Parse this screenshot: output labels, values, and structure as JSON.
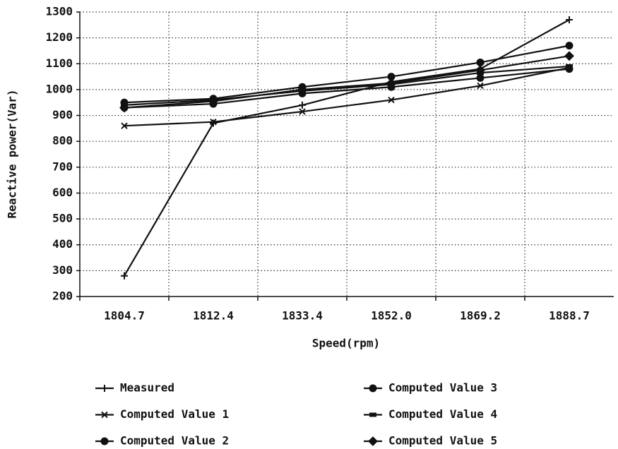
{
  "chart_data": {
    "type": "line",
    "x_label": "Speed(rpm)",
    "y_label": "Reactive power(Var)",
    "categories": [
      "1804.7",
      "1812.4",
      "1833.4",
      "1852.0",
      "1869.2",
      "1888.7"
    ],
    "ylim": [
      200,
      1300
    ],
    "yticks": [
      200,
      300,
      400,
      500,
      600,
      700,
      800,
      900,
      1000,
      1100,
      1200,
      1300
    ],
    "grid": true,
    "series": [
      {
        "name": "Measured",
        "color": "#111111",
        "marker": "plus",
        "values": [
          280,
          870,
          940,
          1030,
          1080,
          1270
        ]
      },
      {
        "name": "Computed Value 1",
        "color": "#111111",
        "marker": "cross",
        "values": [
          860,
          875,
          915,
          960,
          1015,
          1085
        ]
      },
      {
        "name": "Computed Value 2",
        "color": "#111111",
        "marker": "circle",
        "values": [
          930,
          945,
          985,
          1010,
          1045,
          1080
        ]
      },
      {
        "name": "Computed Value 3",
        "color": "#111111",
        "marker": "circle",
        "values": [
          950,
          965,
          1010,
          1050,
          1105,
          1170
        ]
      },
      {
        "name": "Computed Value 4",
        "color": "#111111",
        "marker": "dash",
        "values": [
          940,
          960,
          995,
          1020,
          1065,
          1090
        ]
      },
      {
        "name": "Computed Value 5",
        "color": "#111111",
        "marker": "diamond",
        "values": [
          930,
          955,
          1000,
          1025,
          1075,
          1130
        ]
      }
    ]
  }
}
